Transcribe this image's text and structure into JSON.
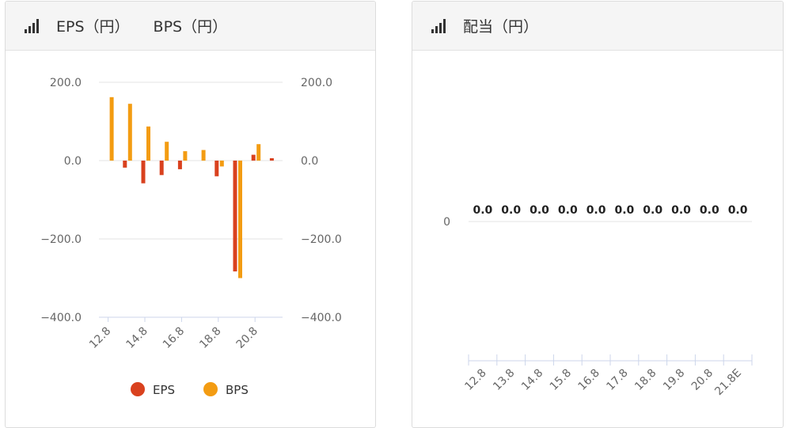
{
  "panels": {
    "eps_bps": {
      "title_parts": [
        "EPS（円）",
        "BPS（円）"
      ],
      "icon": "signal-bars-icon"
    },
    "dividend": {
      "title": "配当（円）",
      "icon": "signal-bars-icon"
    }
  },
  "colors": {
    "eps": "#d9411e",
    "bps": "#f39c12",
    "grid": "#e3e3e3",
    "axis": "#ccd6eb"
  },
  "chart_data": [
    {
      "type": "bar",
      "categories": [
        "12.8",
        "13.8",
        "14.8",
        "15.8",
        "16.8",
        "17.8",
        "18.8",
        "19.8",
        "20.8",
        "21.8"
      ],
      "x_tick_labels": [
        "12.8",
        "14.8",
        "16.8",
        "18.8",
        "20.8"
      ],
      "series": [
        {
          "name": "EPS",
          "color": "#d9411e",
          "values": [
            0,
            -18,
            -58,
            -37,
            -22,
            0,
            -40,
            -283,
            15,
            6
          ]
        },
        {
          "name": "BPS",
          "color": "#f39c12",
          "values": [
            162,
            145,
            87,
            48,
            24,
            27,
            -15,
            -300,
            42,
            0
          ]
        }
      ],
      "ylim": [
        -400,
        200
      ],
      "y_ticks": [
        "200.0",
        "0.0",
        "−200.0",
        "−400.0"
      ],
      "y_tick_values": [
        200,
        0,
        -200,
        -400
      ],
      "grid": true,
      "legend": "bottom"
    },
    {
      "type": "bar",
      "categories": [
        "12.8",
        "13.8",
        "14.8",
        "15.8",
        "16.8",
        "17.8",
        "18.8",
        "19.8",
        "20.8",
        "21.8E"
      ],
      "series": [
        {
          "values": [
            0.0,
            0.0,
            0.0,
            0.0,
            0.0,
            0.0,
            0.0,
            0.0,
            0.0,
            0.0
          ]
        }
      ],
      "data_labels": [
        "0.0",
        "0.0",
        "0.0",
        "0.0",
        "0.0",
        "0.0",
        "0.0",
        "0.0",
        "0.0",
        "0.0"
      ],
      "y_ticks": [
        "0"
      ],
      "grid": true
    }
  ]
}
